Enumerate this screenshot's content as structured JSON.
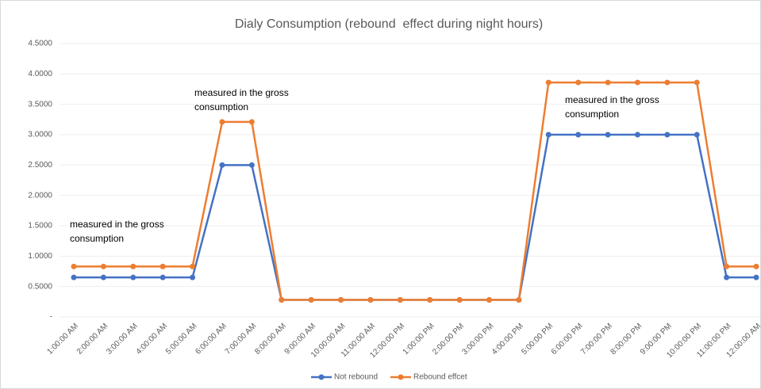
{
  "chart_data": {
    "type": "line",
    "title": "Dialy Consumption (rebound  effect during night hours)",
    "categories": [
      "1:00:00 AM",
      "2:00:00 AM",
      "3:00:00 AM",
      "4:00:00 AM",
      "5:00:00 AM",
      "6:00:00 AM",
      "7:00:00 AM",
      "8:00:00 AM",
      "9:00:00 AM",
      "10:00:00 AM",
      "11:00:00 AM",
      "12:00:00 PM",
      "1:00:00 PM",
      "2:00:00 PM",
      "3:00:00 PM",
      "4:00:00 PM",
      "5:00:00 PM",
      "6:00:00 PM",
      "7:00:00 PM",
      "8:00:00 PM",
      "9:00:00 PM",
      "10:00:00 PM",
      "11:00:00 PM",
      "12:00:00 AM"
    ],
    "series": [
      {
        "name": "Not rebound",
        "color": "#4472c4",
        "values": [
          0.65,
          0.65,
          0.65,
          0.65,
          0.65,
          2.5,
          2.5,
          0.28,
          0.28,
          0.28,
          0.28,
          0.28,
          0.28,
          0.28,
          0.28,
          0.28,
          3.0,
          3.0,
          3.0,
          3.0,
          3.0,
          3.0,
          0.65,
          0.65
        ]
      },
      {
        "name": "Rebound effcet",
        "color": "#ed7d31",
        "values": [
          0.83,
          0.83,
          0.83,
          0.83,
          0.83,
          3.21,
          3.21,
          0.28,
          0.28,
          0.28,
          0.28,
          0.28,
          0.28,
          0.28,
          0.28,
          0.28,
          3.86,
          3.86,
          3.86,
          3.86,
          3.86,
          3.86,
          0.83,
          0.83
        ]
      }
    ],
    "ylim": [
      0,
      4.5
    ],
    "yticks": [
      {
        "value": 0,
        "label": "-"
      },
      {
        "value": 0.5,
        "label": "0.5000"
      },
      {
        "value": 1,
        "label": "1.0000"
      },
      {
        "value": 1.5,
        "label": "1.5000"
      },
      {
        "value": 2,
        "label": "2.0000"
      },
      {
        "value": 2.5,
        "label": "2.5000"
      },
      {
        "value": 3,
        "label": "3.0000"
      },
      {
        "value": 3.5,
        "label": "3.5000"
      },
      {
        "value": 4,
        "label": "4.0000"
      },
      {
        "value": 4.5,
        "label": "4.5000"
      }
    ],
    "grid": true,
    "legend": "bottom",
    "annotations": [
      {
        "lines": [
          "measured in the gross",
          "consumption"
        ]
      },
      {
        "lines": [
          "measured in the gross",
          "consumption"
        ]
      },
      {
        "lines": [
          "measured in the gross",
          "consumption"
        ]
      }
    ]
  }
}
